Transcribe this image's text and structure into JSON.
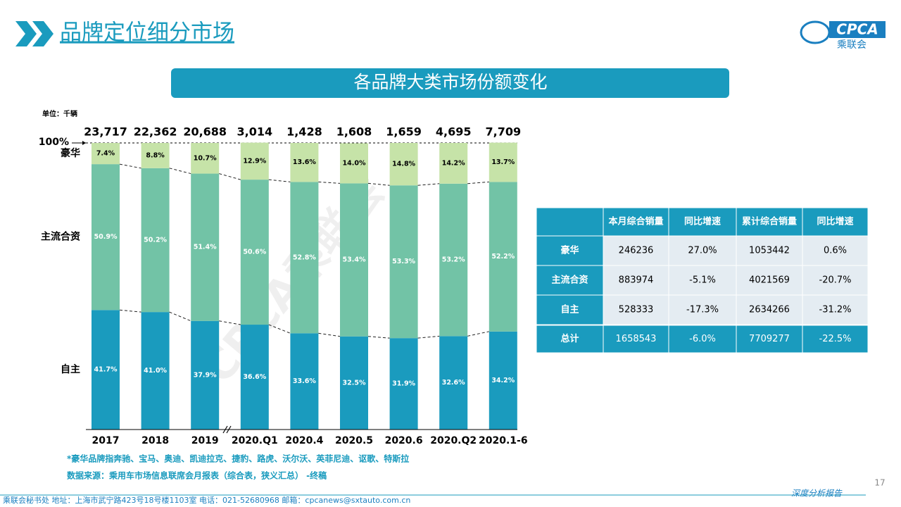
{
  "header": {
    "title": "品牌定位细分市场",
    "logo": "CPCA",
    "logo_sub": "乘联会"
  },
  "chart_data": {
    "type": "bar",
    "stacked": true,
    "title": "各品牌大类市场份额变化",
    "unit": "单位：千辆",
    "categories": [
      "2017",
      "2018",
      "2019",
      "2020.Q1",
      "2020.4",
      "2020.5",
      "2020.6",
      "2020.Q2",
      "2020.1-6"
    ],
    "series": [
      {
        "name": "自主",
        "color": "#1a9bbe",
        "values": [
          41.7,
          41.0,
          37.9,
          36.6,
          33.6,
          32.5,
          31.9,
          32.6,
          34.2
        ],
        "value_labels": [
          "41.7%",
          "41.0%",
          "37.9%",
          "36.6%",
          "33.6%",
          "32.5%",
          "31.9%",
          "32.6%",
          "34.2%"
        ]
      },
      {
        "name": "主流合资",
        "color": "#72c3a6",
        "values": [
          50.9,
          50.2,
          51.4,
          50.6,
          52.8,
          53.4,
          53.3,
          53.2,
          52.2
        ],
        "value_labels": [
          "50.9%",
          "50.2%",
          "51.4%",
          "50.6%",
          "52.8%",
          "53.4%",
          "53.3%",
          "53.2%",
          "52.2%"
        ]
      },
      {
        "name": "豪华",
        "color": "#c6e3a8",
        "values": [
          7.4,
          8.8,
          10.7,
          12.9,
          13.6,
          14.0,
          14.8,
          14.2,
          13.7
        ],
        "value_labels": [
          "7.4%",
          "8.8%",
          "10.7%",
          "12.9%",
          "13.6%",
          "14.0%",
          "14.8%",
          "14.2%",
          "13.7%"
        ]
      }
    ],
    "totals": {
      "values": [
        23717,
        22362,
        20688,
        3014,
        1428,
        1608,
        1659,
        4695,
        7709
      ],
      "value_labels": [
        "23,717",
        "22,362",
        "20,688",
        "3,014",
        "1,428",
        "1,608",
        "1,659",
        "4,695",
        "7,709"
      ]
    },
    "ylim": [
      0,
      100
    ],
    "yticks": [
      {
        "value": 100,
        "label": "100%"
      }
    ],
    "notes": [
      "*豪华品牌指奔驰、宝马、奥迪、凯迪拉克、捷豹、路虎、沃尔沃、英菲尼迪、讴歌、特斯拉",
      "数据来源：乘用车市场信息联席会月报表（综合表，狭义汇总） -终稿"
    ]
  },
  "table": {
    "header": [
      "本月综合销量",
      "同比增速",
      "累计综合销量",
      "同比增速"
    ],
    "rows": [
      [
        "豪华",
        "246236",
        "27.0%",
        "1053442",
        "0.6%"
      ],
      [
        "主流合资",
        "883974",
        "-5.1%",
        "4021569",
        "-20.7%"
      ],
      [
        "自主",
        "528333",
        "-17.3%",
        "2634266",
        "-31.2%"
      ],
      [
        "总计",
        "1658543",
        "-6.0%",
        "7709277",
        "-22.5%"
      ]
    ]
  },
  "watermark": "CPCA乘联会",
  "footer": {
    "address": "乘联会秘书处   地址：上海市武宁路423号18号楼1103室   电话：021-52680968   邮箱：cpcanews@sxtauto.com.cn",
    "report": "深度分析报告",
    "page": "17"
  }
}
